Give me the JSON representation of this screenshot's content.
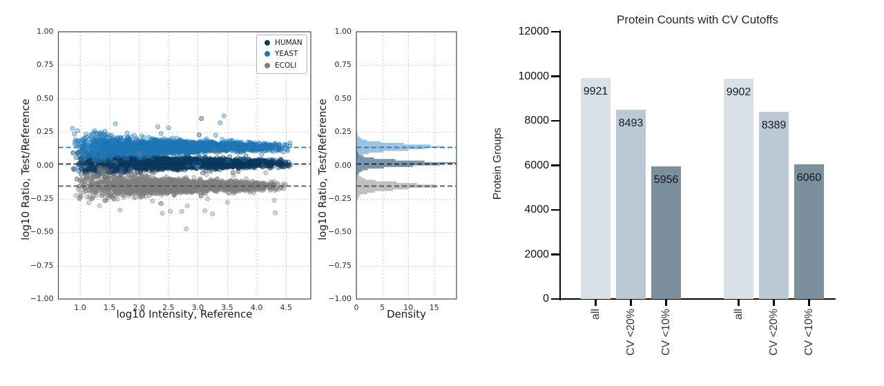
{
  "figure": {
    "background": "#ffffff"
  },
  "chart_data": [
    {
      "id": "ratio-vs-intensity-scatter",
      "type": "scatter",
      "xlabel": "log10 Intensity, Reference",
      "ylabel": "log10 Ratio, Test/Reference",
      "xlim": [
        0.63,
        4.92
      ],
      "ylim": [
        -1.0,
        1.0
      ],
      "xticks": [
        1.0,
        1.5,
        2.0,
        2.5,
        3.0,
        3.5,
        4.0,
        4.5
      ],
      "yticks": [
        1.0,
        0.75,
        0.5,
        0.25,
        0.0,
        -0.25,
        -0.5,
        -0.75,
        -1.0
      ],
      "grid": true,
      "legend_position": "upper right",
      "series": [
        {
          "name": "HUMAN",
          "color": "#0d3a5f",
          "dash_color": "#0a2c4d",
          "center": 0.015,
          "dashed_line": 0.015,
          "n_points": 3000,
          "x_min": 0.88,
          "x_max": 4.65,
          "sd_core": 0.013,
          "sd_low_intensity": 0.055,
          "seed": 101
        },
        {
          "name": "YEAST",
          "color": "#1f77b4",
          "dash_color": "#2478bd",
          "center": 0.138,
          "dashed_line": 0.138,
          "n_points": 2600,
          "x_min": 0.85,
          "x_max": 4.6,
          "sd_core": 0.014,
          "sd_low_intensity": 0.06,
          "seed": 202
        },
        {
          "name": "ECOLI",
          "color": "#7f7f7f",
          "dash_color": "#4f4f4f",
          "center": -0.155,
          "dashed_line": -0.155,
          "n_points": 2300,
          "x_min": 0.9,
          "x_max": 4.55,
          "sd_core": 0.016,
          "sd_low_intensity": 0.062,
          "seed": 303
        }
      ]
    },
    {
      "id": "ratio-density-histogram",
      "type": "histogram-horizontal",
      "xlabel": "Density",
      "ylabel": "log10 Ratio, Test/Reference",
      "xlim": [
        0,
        19.3
      ],
      "xticks": [
        0,
        5,
        10,
        15
      ],
      "yticks": [
        1.0,
        0.75,
        0.5,
        0.25,
        0.0,
        -0.25,
        -0.5,
        -0.75,
        -1.0
      ],
      "ylim": [
        -1.0,
        1.0
      ],
      "bin_width": 0.012,
      "grid": true,
      "series": [
        {
          "name": "HUMAN",
          "fill": "rgba(13,58,95,0.55)",
          "center": 0.015,
          "peak_density": 15.5
        },
        {
          "name": "YEAST",
          "fill": "rgba(31,119,180,0.45)",
          "center": 0.138,
          "peak_density": 16.5
        },
        {
          "name": "ECOLI",
          "fill": "rgba(127,127,127,0.5)",
          "center": -0.155,
          "peak_density": 18.0
        }
      ]
    },
    {
      "id": "protein-counts-bar",
      "type": "bar",
      "title": "Protein Counts with CV Cutoffs",
      "ylabel": "Protein Groups",
      "ylim": [
        0,
        12000
      ],
      "yticks": [
        0,
        2000,
        4000,
        6000,
        8000,
        10000,
        12000
      ],
      "categories": [
        "all",
        "CV <20%",
        "CV <10%",
        "all",
        "CV <20%",
        "CV <10%"
      ],
      "values": [
        9921,
        8493,
        5956,
        9902,
        8389,
        6060
      ],
      "bar_labels": [
        "9921",
        "8493",
        "5956",
        "9902",
        "8389",
        "6060"
      ],
      "bar_colors": [
        "#d8e0e8",
        "#bac9d3",
        "#7b8f9d",
        "#d8e0e8",
        "#bac9d3",
        "#7b8f9d"
      ],
      "group_size": 3,
      "grid": false
    }
  ]
}
